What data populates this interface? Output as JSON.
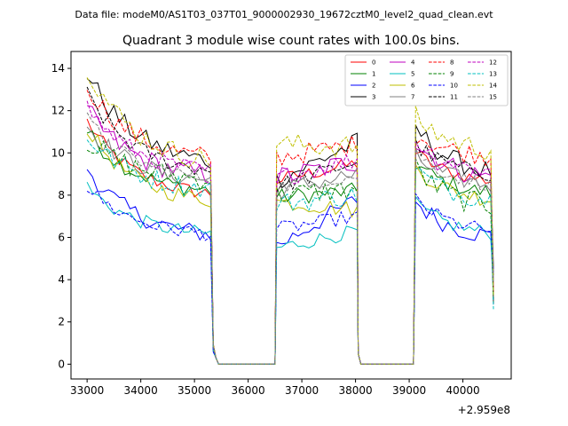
{
  "figure": {
    "suptitle": "Data file: modeM0/AS1T03_037T01_9000002930_19672cztM0_level2_quad_clean.evt",
    "offset_label": "+2.959e8"
  },
  "chart_data": {
    "type": "line",
    "title": "Quadrant 3 module wise count rates with 100.0s bins.",
    "xlabel": "",
    "ylabel": "",
    "xlim": [
      32700,
      40900
    ],
    "ylim": [
      -0.7,
      14.8
    ],
    "xticks": [
      33000,
      34000,
      35000,
      36000,
      37000,
      38000,
      39000,
      40000
    ],
    "yticks": [
      0,
      2,
      4,
      6,
      8,
      10,
      12,
      14
    ],
    "x_offset": 295900000,
    "legend_position": "top-right",
    "gaps": [
      [
        35450,
        36530
      ],
      [
        38050,
        39120
      ]
    ],
    "segments": [
      [
        33000,
        35300
      ],
      [
        36530,
        38000
      ],
      [
        39120,
        40550
      ]
    ],
    "series": [
      {
        "name": "0",
        "color": "#ff0000",
        "dash": "solid",
        "levels": [
          [
            11.5,
            7.8
          ],
          [
            8.7,
            9.5
          ],
          [
            10.0,
            8.5
          ]
        ]
      },
      {
        "name": "1",
        "color": "#008000",
        "dash": "solid",
        "levels": [
          [
            11.0,
            8.0
          ],
          [
            7.9,
            8.2
          ],
          [
            9.5,
            7.9
          ]
        ]
      },
      {
        "name": "2",
        "color": "#0000ff",
        "dash": "solid",
        "levels": [
          [
            9.3,
            5.9
          ],
          [
            5.6,
            7.8
          ],
          [
            7.7,
            5.8
          ]
        ]
      },
      {
        "name": "3",
        "color": "#000000",
        "dash": "solid",
        "levels": [
          [
            13.8,
            9.3
          ],
          [
            8.7,
            10.5
          ],
          [
            11.2,
            8.8
          ]
        ]
      },
      {
        "name": "4",
        "color": "#bf00bf",
        "dash": "solid",
        "levels": [
          [
            12.0,
            8.7
          ],
          [
            8.8,
            9.6
          ],
          [
            10.5,
            8.6
          ]
        ]
      },
      {
        "name": "5",
        "color": "#00bfbf",
        "dash": "solid",
        "levels": [
          [
            8.4,
            6.0
          ],
          [
            5.5,
            6.3
          ],
          [
            7.6,
            6.0
          ]
        ]
      },
      {
        "name": "6",
        "color": "#bfbf00",
        "dash": "solid",
        "levels": [
          [
            11.2,
            7.5
          ],
          [
            7.7,
            7.3
          ],
          [
            9.3,
            7.6
          ]
        ]
      },
      {
        "name": "7",
        "color": "#808080",
        "dash": "solid",
        "levels": [
          [
            11.3,
            8.5
          ],
          [
            8.2,
            9.0
          ],
          [
            9.8,
            8.3
          ]
        ]
      },
      {
        "name": "8",
        "color": "#ff0000",
        "dash": "dashed",
        "levels": [
          [
            13.2,
            9.5
          ],
          [
            9.8,
            10.4
          ],
          [
            10.9,
            9.7
          ]
        ]
      },
      {
        "name": "9",
        "color": "#008000",
        "dash": "dashed",
        "levels": [
          [
            10.6,
            8.6
          ],
          [
            8.0,
            8.3
          ],
          [
            9.3,
            7.2
          ]
        ]
      },
      {
        "name": "10",
        "color": "#0000ff",
        "dash": "dashed",
        "levels": [
          [
            8.4,
            6.0
          ],
          [
            6.4,
            7.0
          ],
          [
            7.8,
            6.1
          ]
        ]
      },
      {
        "name": "11",
        "color": "#000000",
        "dash": "dashed",
        "levels": [
          [
            12.8,
            8.9
          ],
          [
            8.4,
            9.6
          ],
          [
            10.4,
            8.8
          ]
        ]
      },
      {
        "name": "12",
        "color": "#bf00bf",
        "dash": "dashed",
        "levels": [
          [
            12.2,
            8.9
          ],
          [
            8.8,
            9.7
          ],
          [
            10.6,
            8.9
          ]
        ]
      },
      {
        "name": "13",
        "color": "#00bfbf",
        "dash": "dashed",
        "levels": [
          [
            10.8,
            8.1
          ],
          [
            7.6,
            8.0
          ],
          [
            9.2,
            7.6
          ]
        ]
      },
      {
        "name": "14",
        "color": "#bfbf00",
        "dash": "dashed",
        "levels": [
          [
            14.1,
            9.3
          ],
          [
            10.4,
            10.3
          ],
          [
            11.7,
            9.9
          ]
        ]
      },
      {
        "name": "15",
        "color": "#808080",
        "dash": "dashed",
        "levels": [
          [
            11.6,
            8.6
          ],
          [
            8.4,
            8.9
          ],
          [
            10.0,
            8.3
          ]
        ]
      }
    ]
  }
}
